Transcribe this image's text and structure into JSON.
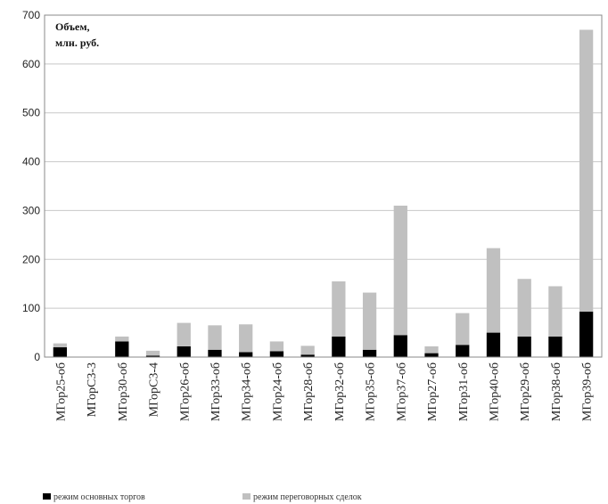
{
  "chart_data": {
    "type": "bar",
    "stacked": true,
    "unit_label_line1": "Объем,",
    "unit_label_line2": "млн. руб.",
    "categories": [
      "МГор25-об",
      "МГорС3-3",
      "МГор30-об",
      "МГорС3-4",
      "МГор26-об",
      "МГор33-об",
      "МГор34-об",
      "МГор24-об",
      "МГор28-об",
      "МГор32-об",
      "МГор35-об",
      "МГор37-об",
      "МГор27-об",
      "МГор31-об",
      "МГор40-об",
      "МГор29-об",
      "МГор38-об",
      "МГор39-об"
    ],
    "series": [
      {
        "name": "режим основных торгов",
        "color": "#000000",
        "values": [
          20,
          0,
          32,
          3,
          22,
          15,
          10,
          12,
          5,
          42,
          15,
          45,
          8,
          25,
          50,
          42,
          42,
          93
        ]
      },
      {
        "name": "режим переговорных сделок",
        "color": "#c0c0c0",
        "values": [
          8,
          0,
          10,
          10,
          48,
          50,
          57,
          20,
          18,
          113,
          117,
          265,
          14,
          65,
          173,
          118,
          103,
          577
        ]
      }
    ],
    "ylim": [
      0,
      700
    ],
    "yticks": [
      0,
      100,
      200,
      300,
      400,
      500,
      600,
      700
    ],
    "grid": true,
    "legend_position": "bottom"
  }
}
